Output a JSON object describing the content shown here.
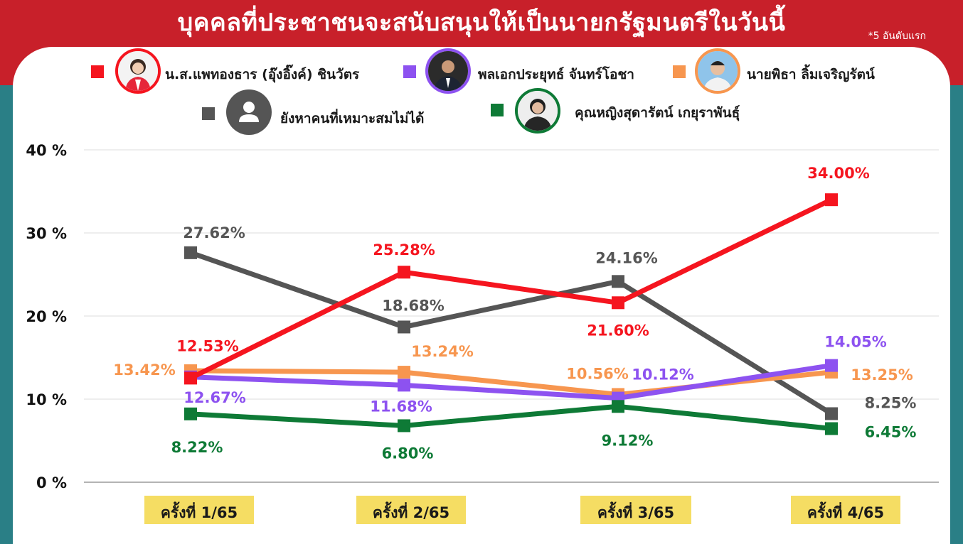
{
  "header": {
    "title": "บุคคลที่ประชาชนจะสนับสนุนให้เป็นนายกรัฐมนตรีในวันนี้",
    "note": "*5 อันดับแรก"
  },
  "colors": {
    "red": "#f5151f",
    "purple": "#8d52f0",
    "orange": "#f7964f",
    "gray": "#555555",
    "green": "#0e7a36",
    "header_red": "#c8202a",
    "category_box": "#f5dd63"
  },
  "chart_data": {
    "type": "line",
    "categories": [
      "ครั้งที่ 1/65",
      "ครั้งที่ 2/65",
      "ครั้งที่ 3/65",
      "ครั้งที่ 4/65"
    ],
    "series": [
      {
        "name": "น.ส.แพทองธาร (อุ๊งอิ๊งค์) ชินวัตร",
        "color": "#f5151f",
        "values": [
          12.53,
          25.28,
          21.6,
          34.0
        ],
        "labels": [
          "12.53%",
          "25.28%",
          "21.60%",
          "34.00%"
        ]
      },
      {
        "name": "พลเอกประยุทธ์ จันทร์โอชา",
        "color": "#8d52f0",
        "values": [
          12.67,
          11.68,
          10.12,
          14.05
        ],
        "labels": [
          "12.67%",
          "11.68%",
          "10.12%",
          "14.05%"
        ]
      },
      {
        "name": "นายพิธา ลิ้มเจริญรัตน์",
        "color": "#f7964f",
        "values": [
          13.42,
          13.24,
          10.56,
          13.25
        ],
        "labels": [
          "13.42%",
          "13.24%",
          "10.56%",
          "13.25%"
        ]
      },
      {
        "name": "ยังหาคนที่เหมาะสมไม่ได้",
        "color": "#555555",
        "values": [
          27.62,
          18.68,
          24.16,
          8.25
        ],
        "labels": [
          "27.62%",
          "18.68%",
          "24.16%",
          "8.25%"
        ]
      },
      {
        "name": "คุณหญิงสุดารัตน์ เกยุราพันธุ์",
        "color": "#0e7a36",
        "values": [
          8.22,
          6.8,
          9.12,
          6.45
        ],
        "labels": [
          "8.22%",
          "6.80%",
          "9.12%",
          "6.45%"
        ]
      }
    ],
    "ylim": [
      0,
      40
    ],
    "yticks": [
      0,
      10,
      20,
      30,
      40
    ],
    "ytick_labels": [
      "0 %",
      "10 %",
      "20 %",
      "30 %",
      "40 %"
    ],
    "grid": true,
    "legend_position": "top"
  }
}
